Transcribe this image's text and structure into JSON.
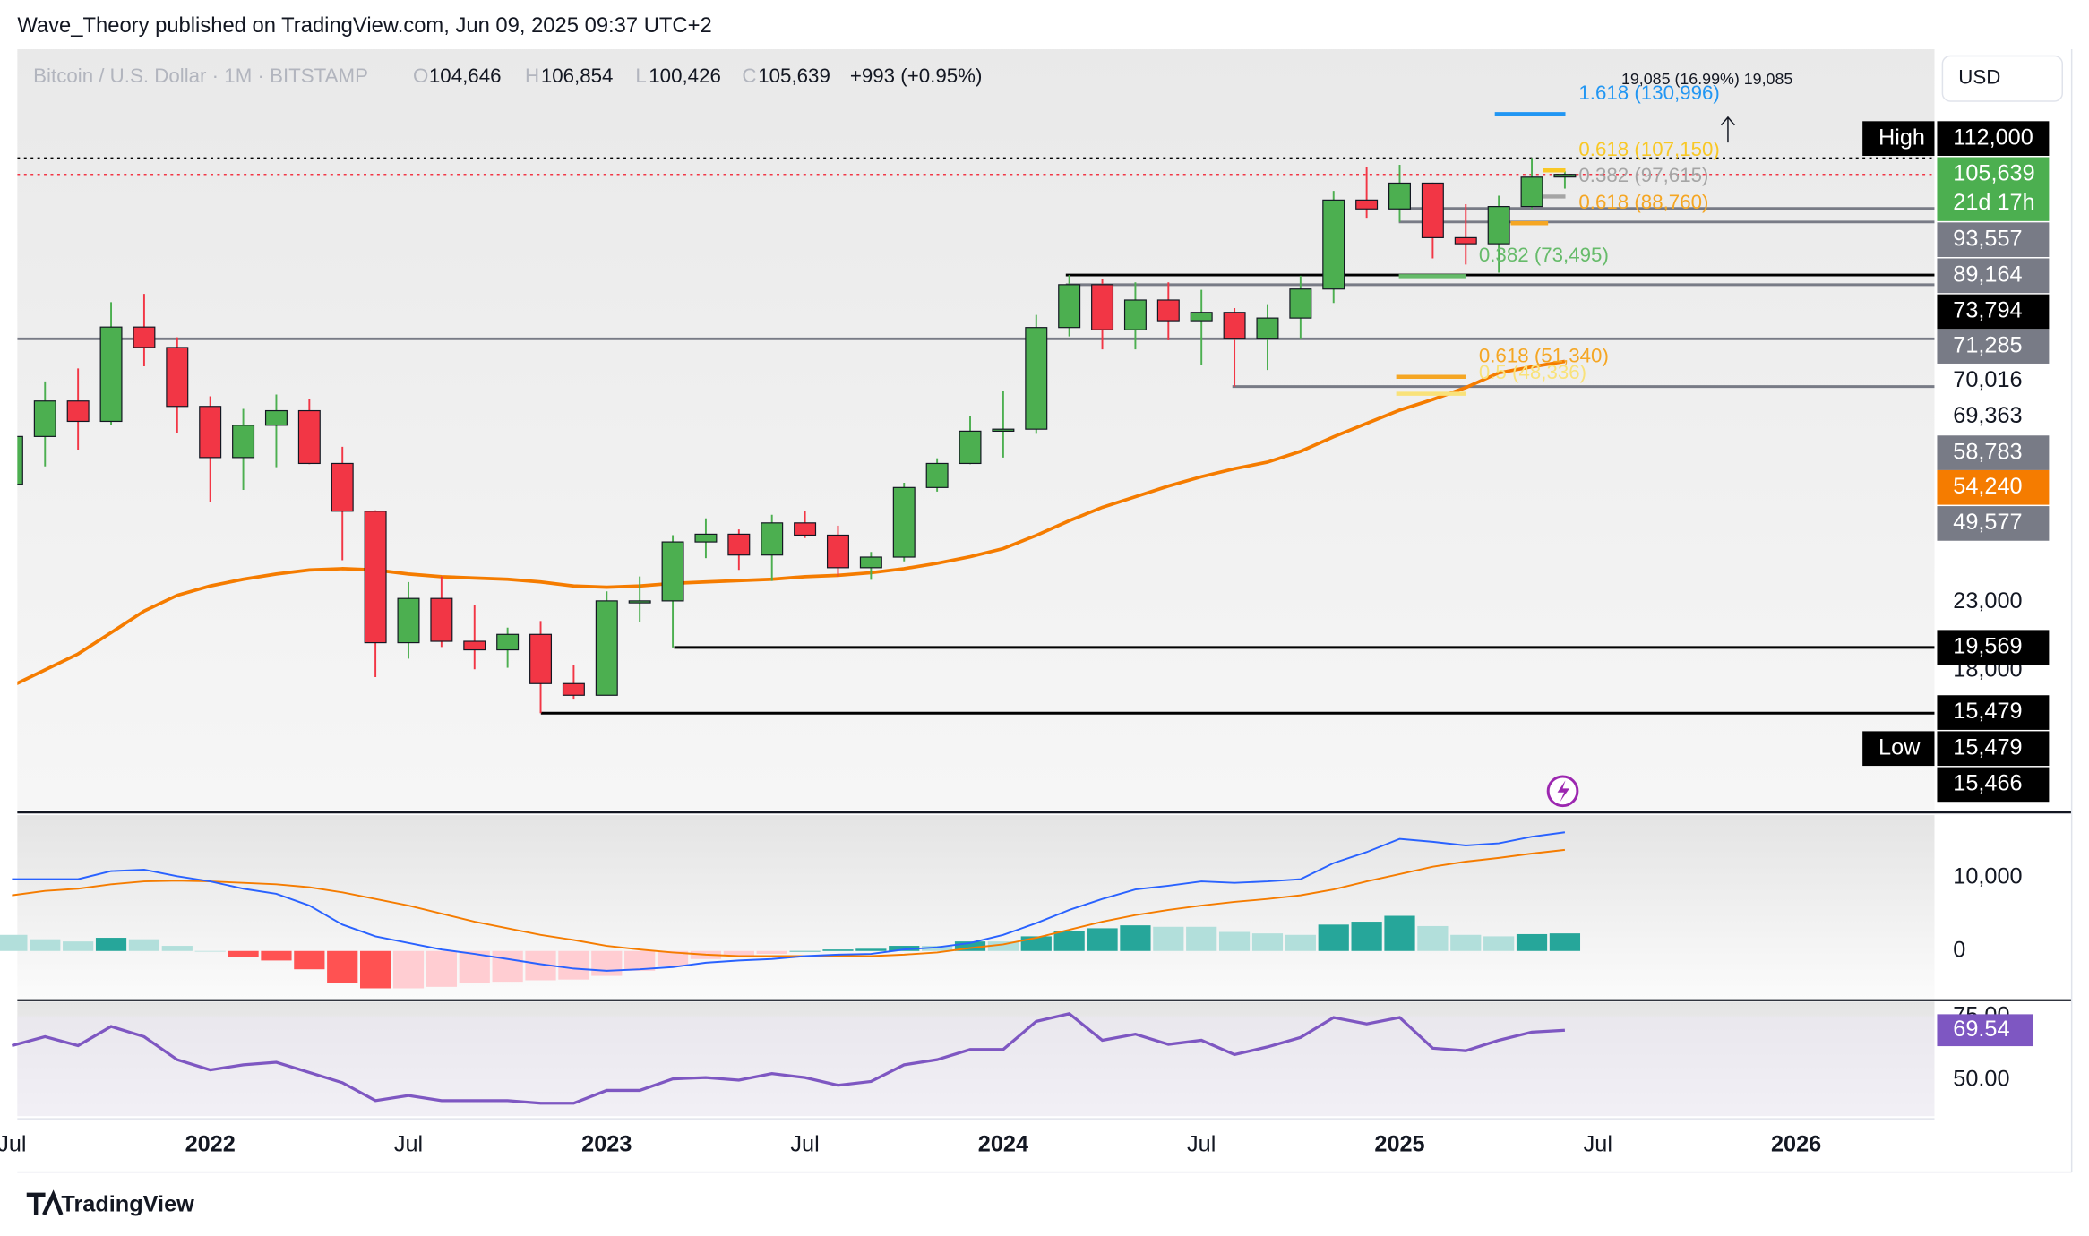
{
  "header": "Wave_Theory published on TradingView.com, Jun 09, 2025 09:37 UTC+2",
  "footer": "TradingView",
  "currency": "USD",
  "chart_data": [
    {
      "type": "candlestick",
      "legend": {
        "symbol": "Bitcoin / U.S. Dollar · 1M · BITSTAMP",
        "o": "104,646",
        "h": "106,854",
        "l": "100,426",
        "c": "105,639",
        "change": "+993 (+0.95%)"
      },
      "categories": [
        "2021-07",
        "2021-08",
        "2021-09",
        "2021-10",
        "2021-11",
        "2021-12",
        "2022-01",
        "2022-02",
        "2022-03",
        "2022-04",
        "2022-05",
        "2022-06",
        "2022-07",
        "2022-08",
        "2022-09",
        "2022-10",
        "2022-11",
        "2022-12",
        "2023-01",
        "2023-02",
        "2023-03",
        "2023-04",
        "2023-05",
        "2023-06",
        "2023-07",
        "2023-08",
        "2023-09",
        "2023-10",
        "2023-11",
        "2023-12",
        "2024-01",
        "2024-02",
        "2024-03",
        "2024-04",
        "2024-05",
        "2024-06",
        "2024-07",
        "2024-08",
        "2024-09",
        "2024-10",
        "2024-11",
        "2024-12",
        "2025-01",
        "2025-02",
        "2025-03",
        "2025-04",
        "2025-05",
        "2025-06"
      ],
      "open": [
        35000,
        41500,
        47100,
        43800,
        61300,
        57000,
        46200,
        38500,
        43200,
        45500,
        37700,
        31800,
        19900,
        23300,
        20000,
        19400,
        20500,
        17200,
        16500,
        23100,
        23100,
        28500,
        29300,
        27200,
        30500,
        29200,
        26000,
        27000,
        34600,
        37700,
        42300,
        42600,
        61200,
        71300,
        60700,
        67500,
        62700,
        64600,
        58900,
        63300,
        70200,
        96400,
        93400,
        102400,
        84300,
        82500,
        94200,
        104646
      ],
      "high": [
        42400,
        50500,
        52900,
        67000,
        69000,
        59100,
        47900,
        45800,
        48200,
        47400,
        40000,
        31900,
        24700,
        25200,
        22800,
        21000,
        21500,
        18400,
        23900,
        25200,
        29200,
        31000,
        29800,
        31400,
        31800,
        30200,
        27500,
        35200,
        38400,
        44700,
        48900,
        64000,
        73794,
        72700,
        71900,
        71900,
        70000,
        65600,
        66500,
        73600,
        99600,
        108300,
        109300,
        102600,
        95000,
        97900,
        112000,
        106854
      ],
      "low": [
        29300,
        37300,
        39600,
        43300,
        53300,
        42000,
        32900,
        34300,
        37200,
        37600,
        26700,
        17600,
        18800,
        19600,
        18100,
        18200,
        15479,
        16300,
        16500,
        21400,
        19569,
        26900,
        25800,
        24800,
        28900,
        25200,
        24900,
        26600,
        34100,
        37600,
        38500,
        41900,
        59300,
        56600,
        56600,
        58500,
        53600,
        49577,
        52600,
        58900,
        66800,
        90500,
        89200,
        78300,
        76600,
        74400,
        93300,
        100426
      ],
      "close": [
        41500,
        47100,
        43800,
        61300,
        57000,
        46200,
        38500,
        43200,
        45500,
        37700,
        31800,
        19900,
        23300,
        20000,
        19400,
        20500,
        17200,
        16500,
        23100,
        23100,
        28500,
        29300,
        27200,
        30500,
        29200,
        26000,
        27000,
        34600,
        37700,
        42300,
        42600,
        61200,
        71300,
        60700,
        67500,
        62700,
        64600,
        58900,
        63300,
        70200,
        96400,
        93400,
        102400,
        84300,
        82500,
        94200,
        104600,
        105639
      ],
      "up_color": "#4caf50",
      "down_color": "#f23645",
      "log_scale": true,
      "ylim": [
        10970,
        165000
      ],
      "yticks": [
        {
          "value": 23000,
          "label": "23,000"
        },
        {
          "value": 18000,
          "label": "18,000"
        }
      ],
      "xticks": [
        {
          "value": "2021-07",
          "label": "Jul"
        },
        {
          "value": "2022-01",
          "label": "2022"
        },
        {
          "value": "2022-07",
          "label": "Jul"
        },
        {
          "value": "2023-01",
          "label": "2023"
        },
        {
          "value": "2023-07",
          "label": "Jul"
        },
        {
          "value": "2024-01",
          "label": "2024"
        },
        {
          "value": "2024-07",
          "label": "Jul"
        },
        {
          "value": "2025-01",
          "label": "2025"
        },
        {
          "value": "2025-07",
          "label": "Jul"
        },
        {
          "value": "2026-01",
          "label": "2026"
        }
      ],
      "ma": {
        "color": "#f57c00",
        "values": [
          17060,
          18060,
          19120,
          20630,
          22280,
          23560,
          24360,
          24950,
          25420,
          25790,
          25910,
          25790,
          25420,
          25180,
          25060,
          24950,
          24710,
          24360,
          24250,
          24360,
          24590,
          24710,
          24830,
          24950,
          25180,
          25300,
          25540,
          25910,
          26410,
          27040,
          27830,
          29170,
          30740,
          32240,
          33480,
          34780,
          35960,
          37000,
          37880,
          39360,
          41460,
          43480,
          45590,
          47350,
          49400,
          52060,
          53200,
          54240
        ]
      },
      "levels": [
        {
          "value": 112000,
          "label": "112,000",
          "tag": "High",
          "color": "#000000"
        },
        {
          "value": 105639,
          "label": "105,639",
          "countdown": "21d 17h",
          "color": "#4caf50"
        },
        {
          "value": 93557,
          "label": "93,557",
          "color": "#787b86"
        },
        {
          "value": 89164,
          "label": "89,164",
          "color": "#787b86"
        },
        {
          "value": 73794,
          "label": "73,794",
          "color": "#000000"
        },
        {
          "value": 71285,
          "label": "71,285",
          "color": "#787b86"
        },
        {
          "value": 70016,
          "label": "70,016"
        },
        {
          "value": 69363,
          "label": "69,363"
        },
        {
          "value": 58783,
          "label": "58,783",
          "color": "#787b86"
        },
        {
          "value": 54240,
          "label": "54,240",
          "color": "#f57c00"
        },
        {
          "value": 49577,
          "label": "49,577",
          "color": "#787b86"
        },
        {
          "value": 19569,
          "label": "19,569",
          "color": "#000000"
        },
        {
          "value": 15479,
          "label": "15,479",
          "color": "#000000"
        },
        {
          "value": 15479,
          "label": "15,479",
          "tag": "Low",
          "color": "#000000"
        },
        {
          "value": 15466,
          "label": "15,466",
          "color": "#000000"
        }
      ],
      "fibs": [
        {
          "value": 130996,
          "label": "1.618 (130,996)",
          "color": "#2196f3"
        },
        {
          "value": 107150,
          "label": "0.618 (107,150)",
          "color": "#f9c825"
        },
        {
          "value": 97615,
          "label": "0.382 (97,615)",
          "color": "#a5a5a5"
        },
        {
          "value": 88760,
          "label": "0.618 (88,760)",
          "color": "#f5a623"
        },
        {
          "value": 73495,
          "label": "0.382 (73,495)",
          "color": "#66bb6a"
        },
        {
          "value": 51340,
          "label": "0.618 (51,340)",
          "color": "#f5a623"
        },
        {
          "value": 48336,
          "label": "0.5 (48,336)",
          "color": "#f9e27a"
        }
      ],
      "measure": "19,085 (16.99%) 19,085"
    },
    {
      "type": "macd",
      "ylim": [
        -6545,
        18545
      ],
      "yticks": [
        {
          "value": 10000,
          "label": "10,000"
        },
        0
      ],
      "macd": {
        "color": "#2962ff",
        "values": [
          9800,
          9800,
          9800,
          10900,
          11100,
          10200,
          9500,
          8500,
          7800,
          6200,
          3600,
          2000,
          1100,
          200,
          -400,
          -1100,
          -1800,
          -2400,
          -2700,
          -2500,
          -2200,
          -1600,
          -1300,
          -1100,
          -700,
          -500,
          -400,
          200,
          500,
          1100,
          2200,
          3800,
          5600,
          7100,
          8400,
          8900,
          9500,
          9300,
          9500,
          9800,
          12000,
          13500,
          15300,
          14900,
          14400,
          14700,
          15600,
          16200
        ]
      },
      "signal": {
        "color": "#f57c00",
        "values": [
          7600,
          8200,
          8500,
          9100,
          9500,
          9600,
          9500,
          9300,
          9100,
          8700,
          8000,
          7100,
          6200,
          5100,
          4000,
          3100,
          2200,
          1500,
          700,
          200,
          -200,
          -500,
          -700,
          -700,
          -700,
          -700,
          -700,
          -500,
          -200,
          400,
          900,
          1800,
          2900,
          4000,
          4900,
          5600,
          6200,
          6700,
          7100,
          7600,
          8400,
          9500,
          10500,
          11500,
          12200,
          12700,
          13300,
          13800
        ]
      },
      "histogram": [
        2200,
        1600,
        1300,
        1800,
        1600,
        700,
        0,
        -800,
        -1300,
        -2500,
        -4400,
        -5100,
        -5100,
        -4900,
        -4400,
        -4200,
        -4000,
        -3900,
        -3400,
        -2700,
        -2000,
        -1100,
        -600,
        -400,
        0,
        200,
        300,
        700,
        700,
        1300,
        1300,
        2000,
        2700,
        3100,
        3500,
        3300,
        3300,
        2600,
        2400,
        2200,
        3600,
        4000,
        4800,
        3400,
        2200,
        2000,
        2300,
        2400
      ],
      "histogram_colors": {
        "rising_up": "#26a69a",
        "falling_up": "#b2dfdb",
        "falling_down": "#ff5252",
        "rising_down": "#ffcdd2"
      }
    },
    {
      "type": "line",
      "ylim": [
        35.94,
        80.73
      ],
      "yticks": [
        {
          "value": 75,
          "label": "75.00"
        },
        {
          "value": 50,
          "label": "50.00"
        }
      ],
      "color": "#7e57c2",
      "values": [
        63.5,
        67,
        63.5,
        71,
        67,
        58,
        54,
        56,
        57,
        53,
        49,
        42,
        44,
        42,
        42,
        42,
        41,
        41,
        46,
        46,
        50.5,
        51,
        50,
        52.6,
        51,
        48,
        49.5,
        56,
        58,
        62,
        62,
        73,
        76,
        65.6,
        68,
        64,
        65.6,
        60,
        63,
        66.7,
        74.5,
        72,
        74.5,
        62.5,
        61.5,
        65.6,
        68.8,
        69.54
      ]
    }
  ]
}
